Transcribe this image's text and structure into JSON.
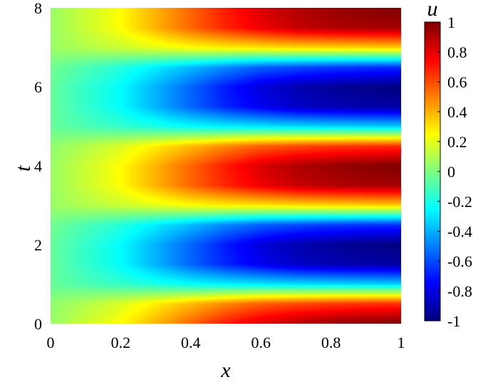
{
  "chart_data": {
    "type": "heatmap",
    "title": "",
    "xlabel": "x",
    "ylabel": "t",
    "colorbar_label": "u",
    "xlim": [
      0,
      1
    ],
    "ylim": [
      0,
      8
    ],
    "clim": [
      -1,
      1
    ],
    "colormap": "jet",
    "x_ticks": [
      0,
      0.2,
      0.4,
      0.6,
      0.8,
      1
    ],
    "x_tick_labels": [
      "0",
      "0.2",
      "0.4",
      "0.6",
      "0.8",
      "1"
    ],
    "y_ticks": [
      0,
      2,
      4,
      6,
      8
    ],
    "y_tick_labels": [
      "0",
      "2",
      "4",
      "6",
      "8"
    ],
    "colorbar_ticks": [
      1,
      0.8,
      0.6,
      0.4,
      0.2,
      0,
      -0.2,
      -0.4,
      -0.6,
      -0.8,
      -1
    ],
    "colorbar_tick_labels": [
      "1",
      "0.8",
      "0.6",
      "0.4",
      "0.2",
      "0",
      "-0.2",
      "-0.4",
      "-0.6",
      "-0.8",
      "-1"
    ],
    "grid": false,
    "field": {
      "description_of_values": "u(x,t) sampled on a regular grid; rows are t, columns are x",
      "x": [
        0,
        0.1,
        0.2,
        0.3,
        0.4,
        0.5,
        0.6,
        0.7,
        0.8,
        0.9,
        1
      ],
      "t": [
        0,
        0.5,
        1,
        1.5,
        2,
        2.5,
        3,
        3.5,
        4,
        4.5,
        5,
        5.5,
        6,
        6.5,
        7,
        7.5,
        8
      ],
      "u": [
        [
          0.05,
          0.15,
          0.25,
          0.4,
          0.55,
          0.7,
          0.82,
          0.9,
          0.95,
          0.98,
          1.0
        ],
        [
          0.03,
          0.1,
          0.18,
          0.28,
          0.38,
          0.48,
          0.56,
          0.6,
          0.63,
          0.65,
          0.66
        ],
        [
          -0.05,
          -0.1,
          -0.15,
          -0.2,
          -0.25,
          -0.28,
          -0.3,
          -0.32,
          -0.33,
          -0.34,
          -0.35
        ],
        [
          -0.05,
          -0.15,
          -0.25,
          -0.4,
          -0.55,
          -0.68,
          -0.78,
          -0.86,
          -0.9,
          -0.92,
          -0.93
        ],
        [
          -0.05,
          -0.15,
          -0.25,
          -0.4,
          -0.55,
          -0.7,
          -0.82,
          -0.9,
          -0.95,
          -0.98,
          -1.0
        ],
        [
          -0.03,
          -0.1,
          -0.18,
          -0.28,
          -0.38,
          -0.48,
          -0.56,
          -0.6,
          -0.63,
          -0.65,
          -0.66
        ],
        [
          0.05,
          0.1,
          0.15,
          0.2,
          0.25,
          0.28,
          0.3,
          0.32,
          0.33,
          0.34,
          0.35
        ],
        [
          0.05,
          0.15,
          0.25,
          0.4,
          0.55,
          0.68,
          0.78,
          0.86,
          0.9,
          0.92,
          0.93
        ],
        [
          0.05,
          0.15,
          0.25,
          0.4,
          0.55,
          0.7,
          0.82,
          0.9,
          0.95,
          0.98,
          1.0
        ],
        [
          0.03,
          0.1,
          0.18,
          0.28,
          0.38,
          0.48,
          0.56,
          0.6,
          0.63,
          0.65,
          0.66
        ],
        [
          -0.05,
          -0.1,
          -0.15,
          -0.2,
          -0.25,
          -0.28,
          -0.3,
          -0.32,
          -0.33,
          -0.34,
          -0.35
        ],
        [
          -0.05,
          -0.15,
          -0.25,
          -0.4,
          -0.55,
          -0.68,
          -0.78,
          -0.86,
          -0.9,
          -0.92,
          -0.93
        ],
        [
          -0.05,
          -0.15,
          -0.25,
          -0.4,
          -0.55,
          -0.7,
          -0.82,
          -0.9,
          -0.95,
          -0.98,
          -1.0
        ],
        [
          -0.03,
          -0.1,
          -0.18,
          -0.28,
          -0.38,
          -0.48,
          -0.56,
          -0.6,
          -0.63,
          -0.65,
          -0.66
        ],
        [
          0.05,
          0.1,
          0.15,
          0.2,
          0.25,
          0.28,
          0.3,
          0.32,
          0.33,
          0.34,
          0.35
        ],
        [
          0.05,
          0.15,
          0.25,
          0.4,
          0.55,
          0.68,
          0.78,
          0.86,
          0.9,
          0.92,
          0.93
        ],
        [
          0.05,
          0.15,
          0.25,
          0.4,
          0.55,
          0.7,
          0.82,
          0.9,
          0.95,
          0.98,
          1.0
        ]
      ]
    }
  }
}
